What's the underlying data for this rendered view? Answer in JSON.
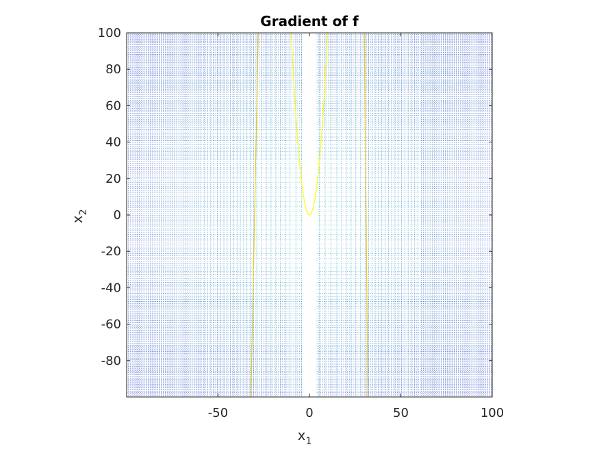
{
  "chart_data": {
    "type": "contour",
    "title": "Gradient of f",
    "xlabel": {
      "base": "x",
      "sub": "1"
    },
    "ylabel": {
      "base": "x",
      "sub": "2"
    },
    "xlim": [
      -100,
      100
    ],
    "ylim": [
      -100,
      100
    ],
    "x_ticks": [
      {
        "value": -50,
        "label": "-50"
      },
      {
        "value": 0,
        "label": "0"
      },
      {
        "value": 50,
        "label": "50"
      },
      {
        "value": 100,
        "label": "100"
      }
    ],
    "y_ticks": [
      {
        "value": 100,
        "label": "100"
      },
      {
        "value": 80,
        "label": "80"
      },
      {
        "value": 60,
        "label": "60"
      },
      {
        "value": 40,
        "label": "40"
      },
      {
        "value": 20,
        "label": "20"
      },
      {
        "value": 0,
        "label": "0"
      },
      {
        "value": -20,
        "label": "-20"
      },
      {
        "value": -40,
        "label": "-40"
      },
      {
        "value": -60,
        "label": "-60"
      },
      {
        "value": -80,
        "label": "-80"
      }
    ],
    "line_style": "dotted",
    "colormap": "parula",
    "grid": false,
    "legend": "none",
    "colors": {
      "low": "#3d4cc8",
      "mid": "#1aa6b7",
      "high": "#f9fb0e",
      "axis": "#262626"
    },
    "solid_curves": [
      {
        "name": "parabola",
        "color": "#f9fb0e",
        "vertex": [
          0,
          0
        ],
        "x_at_top": [
          -10,
          10
        ]
      },
      {
        "name": "left-band",
        "color": "#e3c62a",
        "x_bottom": -32,
        "x_top": -28
      },
      {
        "name": "right-band",
        "color": "#e3c62a",
        "x_bottom": 32,
        "x_top": 30
      }
    ]
  }
}
